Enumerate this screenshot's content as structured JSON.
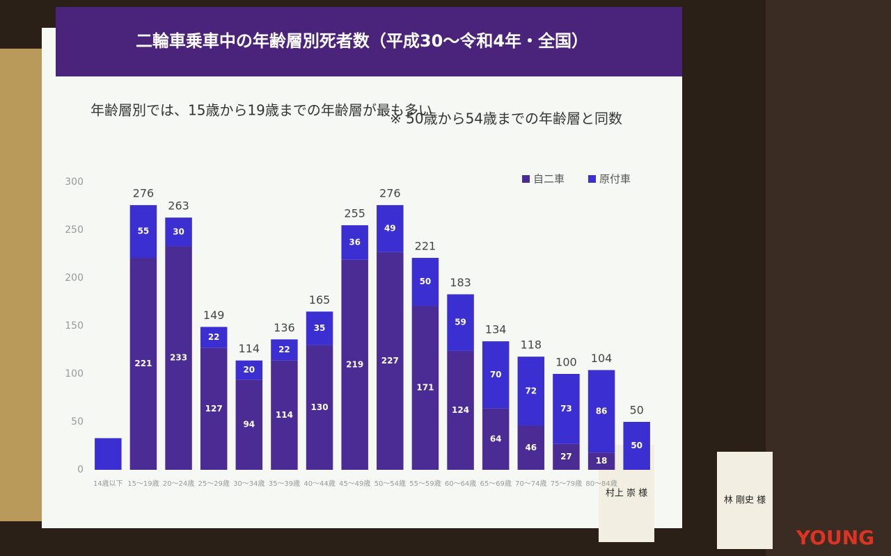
{
  "chart_data": {
    "type": "stacked_bar",
    "title": "二輪車乗車中の年齢層別死者数（平成30～令和4年・全国）",
    "subtitle": "年齢層別では、15歳から19歳までの年齢層が最も多い",
    "note": "※ 50歳から54歳までの年齢層と同数",
    "categories": [
      "14歳以下",
      "15～19歳",
      "20～24歳",
      "25～29歳",
      "30～34歳",
      "35～39歳",
      "40～44歳",
      "45～49歳",
      "50～54歳",
      "55～59歳",
      "60～64歳",
      "65～69歳",
      "70～74歳",
      "75～79歳",
      "80～84歳",
      null
    ],
    "series": [
      {
        "name": "自二車",
        "color": "#4a2c94",
        "values": [
          0,
          221,
          233,
          127,
          94,
          114,
          130,
          219,
          227,
          171,
          124,
          64,
          46,
          27,
          18,
          0
        ]
      },
      {
        "name": "原付車",
        "color": "#3b2fd2",
        "values": [
          33,
          55,
          30,
          22,
          20,
          22,
          35,
          36,
          49,
          50,
          59,
          70,
          72,
          73,
          86,
          50
        ]
      }
    ],
    "totals": [
      null,
      276,
      263,
      149,
      114,
      136,
      165,
      255,
      276,
      221,
      183,
      134,
      118,
      100,
      104,
      50
    ],
    "ylim": [
      0,
      300
    ],
    "yticks": [
      0,
      50,
      100,
      150,
      200,
      250,
      300
    ],
    "legend": "top-right"
  },
  "name_cards": [
    "村上 崇 様",
    "林 剛史 様"
  ],
  "watermark": "YOUNG"
}
